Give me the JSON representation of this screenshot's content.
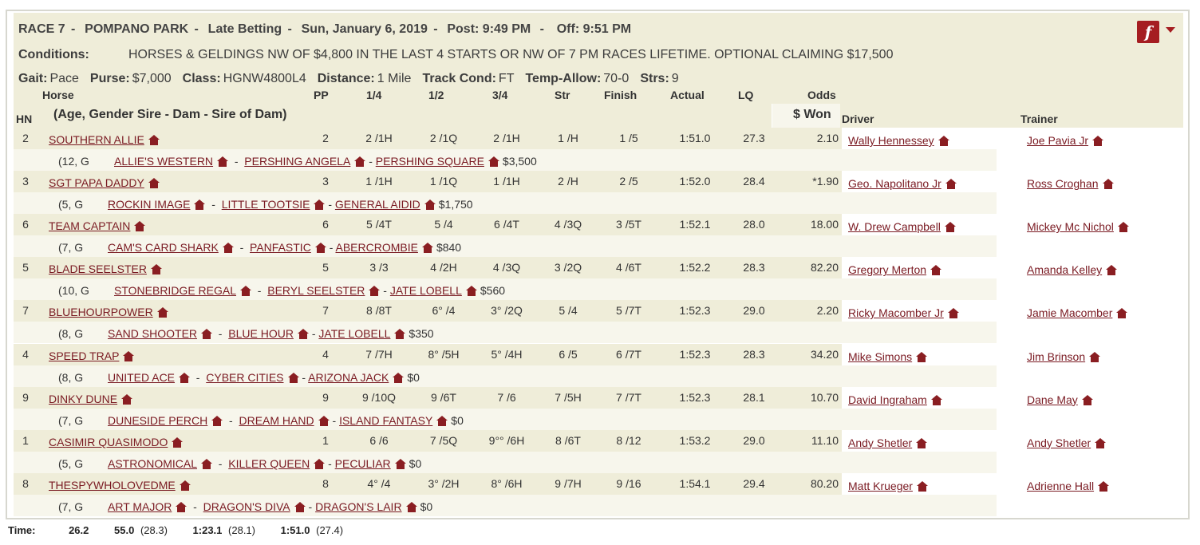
{
  "race": {
    "number": "RACE 7",
    "track": "POMPANO PARK",
    "betting": "Late Betting",
    "date": "Sun, January 6, 2019",
    "post": "Post: 9:49 PM",
    "off": "Off: 9:51 PM"
  },
  "conditions": {
    "label": "Conditions:",
    "text": "HORSES & GELDINGS NW OF $4,800 IN THE LAST 4 STARTS OR NW OF 7 PM RACES LIFETIME. OPTIONAL CLAIMING $17,500"
  },
  "gait": [
    {
      "label": "Gait:",
      "value": "Pace"
    },
    {
      "label": "Purse:",
      "value": "$7,000"
    },
    {
      "label": "Class:",
      "value": "HGNW4800L4"
    },
    {
      "label": "Distance:",
      "value": "1 Mile"
    },
    {
      "label": "Track Cond:",
      "value": "FT"
    },
    {
      "label": "Temp-Allow:",
      "value": "70-0"
    },
    {
      "label": "Strs:",
      "value": "9"
    }
  ],
  "columns": {
    "hn": "HN",
    "horse": "Horse",
    "pedigree": "(Age, Gender  Sire - Dam - Sire of Dam)",
    "pp": "PP",
    "q1": "1/4",
    "q2": "1/2",
    "q3": "3/4",
    "str": "Str",
    "finish": "Finish",
    "actual": "Actual",
    "lq": "LQ",
    "odds": "Odds",
    "won": "$ Won",
    "driver": "Driver",
    "trainer": "Trainer"
  },
  "entries": [
    {
      "hn": "2",
      "horse": "SOUTHERN ALLIE",
      "pp": "2",
      "q1": "2 /1H",
      "q2": "2 /1Q",
      "q3": "2 /1H",
      "str": "1 /H",
      "finish": "1 /5",
      "actual": "1:51.0",
      "lq": "27.3",
      "odds": "2.10",
      "driver": "Wally Hennessey",
      "trainer": "Joe Pavia Jr",
      "age": "(12, G",
      "sire": "ALLIE'S WESTERN",
      "dam": "PERSHING ANGELA",
      "damsire": "PERSHING SQUARE",
      "won": "$3,500"
    },
    {
      "hn": "3",
      "horse": "SGT PAPA DADDY",
      "pp": "3",
      "q1": "1 /1H",
      "q2": "1 /1Q",
      "q3": "1 /1H",
      "str": "2 /H",
      "finish": "2 /5",
      "actual": "1:52.0",
      "lq": "28.4",
      "odds": "*1.90",
      "driver": "Geo. Napolitano Jr",
      "trainer": "Ross Croghan",
      "age": "(5, G",
      "sire": "ROCKIN IMAGE",
      "dam": "LITTLE TOOTSIE",
      "damsire": "GENERAL AIDID",
      "won": "$1,750"
    },
    {
      "hn": "6",
      "horse": "TEAM CAPTAIN",
      "pp": "6",
      "q1": "5 /4T",
      "q2": "5 /4",
      "q3": "6 /4T",
      "str": "4 /3Q",
      "finish": "3 /5T",
      "actual": "1:52.1",
      "lq": "28.0",
      "odds": "18.00",
      "driver": "W. Drew Campbell",
      "trainer": "Mickey Mc Nichol",
      "age": "(7, G",
      "sire": "CAM'S CARD SHARK",
      "dam": "PANFASTIC",
      "damsire": "ABERCROMBIE",
      "won": "$840"
    },
    {
      "hn": "5",
      "horse": "BLADE SEELSTER",
      "pp": "5",
      "q1": "3 /3",
      "q2": "4 /2H",
      "q3": "4 /3Q",
      "str": "3 /2Q",
      "finish": "4 /6T",
      "actual": "1:52.2",
      "lq": "28.3",
      "odds": "82.20",
      "driver": "Gregory Merton",
      "trainer": "Amanda Kelley",
      "age": "(10, G",
      "sire": "STONEBRIDGE REGAL",
      "dam": "BERYL SEELSTER",
      "damsire": "JATE LOBELL",
      "won": "$560"
    },
    {
      "hn": "7",
      "horse": "BLUEHOURPOWER",
      "pp": "7",
      "q1": "8 /8T",
      "q2": "6° /4",
      "q3": "3° /2Q",
      "str": "5 /4",
      "finish": "5 /7T",
      "actual": "1:52.3",
      "lq": "29.0",
      "odds": "2.20",
      "driver": "Ricky Macomber Jr",
      "trainer": "Jamie Macomber",
      "age": "(8, G",
      "sire": "SAND SHOOTER",
      "dam": "BLUE HOUR",
      "damsire": "JATE LOBELL",
      "won": "$350"
    },
    {
      "hn": "4",
      "horse": "SPEED TRAP",
      "pp": "4",
      "q1": "7 /7H",
      "q2": "8° /5H",
      "q3": "5° /4H",
      "str": "6 /5",
      "finish": "6 /7T",
      "actual": "1:52.3",
      "lq": "28.3",
      "odds": "34.20",
      "driver": "Mike Simons",
      "trainer": "Jim Brinson",
      "age": "(8, G",
      "sire": "UNITED ACE",
      "dam": "CYBER CITIES",
      "damsire": "ARIZONA JACK",
      "won": "$0"
    },
    {
      "hn": "9",
      "horse": "DINKY DUNE",
      "pp": "9",
      "q1": "9 /10Q",
      "q2": "9 /6T",
      "q3": "7 /6",
      "str": "7 /5H",
      "finish": "7 /7T",
      "actual": "1:52.3",
      "lq": "28.1",
      "odds": "10.70",
      "driver": "David Ingraham",
      "trainer": "Dane May",
      "age": "(7, G",
      "sire": "DUNESIDE PERCH",
      "dam": "DREAM HAND",
      "damsire": "ISLAND FANTASY",
      "won": "$0"
    },
    {
      "hn": "1",
      "horse": "CASIMIR QUASIMODO",
      "pp": "1",
      "q1": "6 /6",
      "q2": "7 /5Q",
      "q3": "9°° /6H",
      "str": "8 /6T",
      "finish": "8 /12",
      "actual": "1:53.2",
      "lq": "29.0",
      "odds": "11.10",
      "driver": "Andy Shetler",
      "trainer": "Andy Shetler",
      "age": "(5, G",
      "sire": "ASTRONOMICAL",
      "dam": "KILLER QUEEN",
      "damsire": "PECULIAR",
      "won": "$0"
    },
    {
      "hn": "8",
      "horse": "THESPYWHOLOVEDME",
      "pp": "8",
      "q1": "4° /4",
      "q2": "3° /2H",
      "q3": "8° /6H",
      "str": "9 /7H",
      "finish": "9 /16",
      "actual": "1:54.1",
      "lq": "29.4",
      "odds": "80.20",
      "driver": "Matt Krueger",
      "trainer": "Adrienne Hall",
      "age": "(7, G",
      "sire": "ART MAJOR",
      "dam": "DRAGON'S DIVA",
      "damsire": "DRAGON'S LAIR",
      "won": "$0"
    }
  ],
  "times": {
    "label": "Time:",
    "q1": "26.2",
    "q2": "55.0",
    "q2_split": "(28.3)",
    "q3": "1:23.1",
    "q3_split": "(28.1)",
    "final": "1:51.0",
    "final_split": "(27.4)"
  },
  "icons": {
    "flash": "flash-player-icon",
    "house": "house-icon"
  },
  "colors": {
    "header_bg": "#efedd9",
    "link": "#7a1a22",
    "icon": "#8a1e22"
  }
}
